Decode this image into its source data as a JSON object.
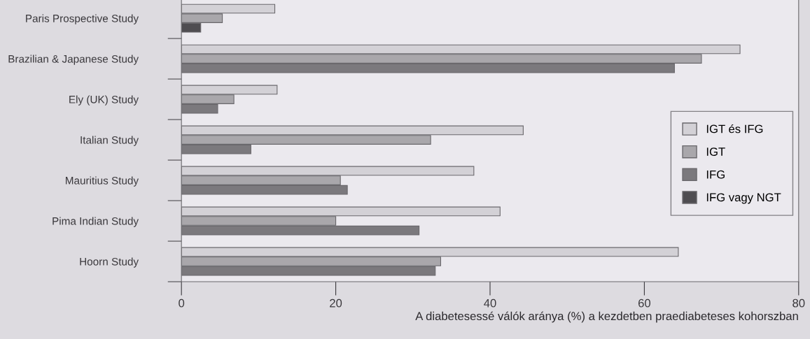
{
  "chart_data": {
    "type": "bar",
    "orientation": "horizontal",
    "xlabel": "A diabetesessé válók aránya (%) a kezdetben praediabeteses kohorszban",
    "categories": [
      "Paris Prospective Study",
      "Brazilian & Japanese Study",
      "Ely (UK) Study",
      "Italian Study",
      "Mauritius Study",
      "Pima Indian Study",
      "Hoorn Study"
    ],
    "series": [
      {
        "name": "IGT és IFG",
        "color": "#d3d1d6",
        "values": [
          12.1,
          72.4,
          12.4,
          44.3,
          37.9,
          41.3,
          64.4
        ]
      },
      {
        "name": "IGT",
        "color": "#a9a7ab",
        "values": [
          5.3,
          67.4,
          6.8,
          32.3,
          20.6,
          20.0,
          33.6
        ]
      },
      {
        "name": "IFG",
        "color": "#7b797d",
        "values": [
          null,
          63.9,
          4.7,
          9.0,
          21.5,
          30.8,
          32.9
        ]
      },
      {
        "name": "IFG vagy NGT",
        "color": "#4f4d51",
        "values": [
          2.5,
          null,
          null,
          null,
          null,
          null,
          null
        ]
      }
    ],
    "xlim": [
      0,
      80
    ],
    "xticks": [
      0,
      20,
      40,
      60,
      80
    ],
    "grid": false,
    "legend": "right"
  }
}
